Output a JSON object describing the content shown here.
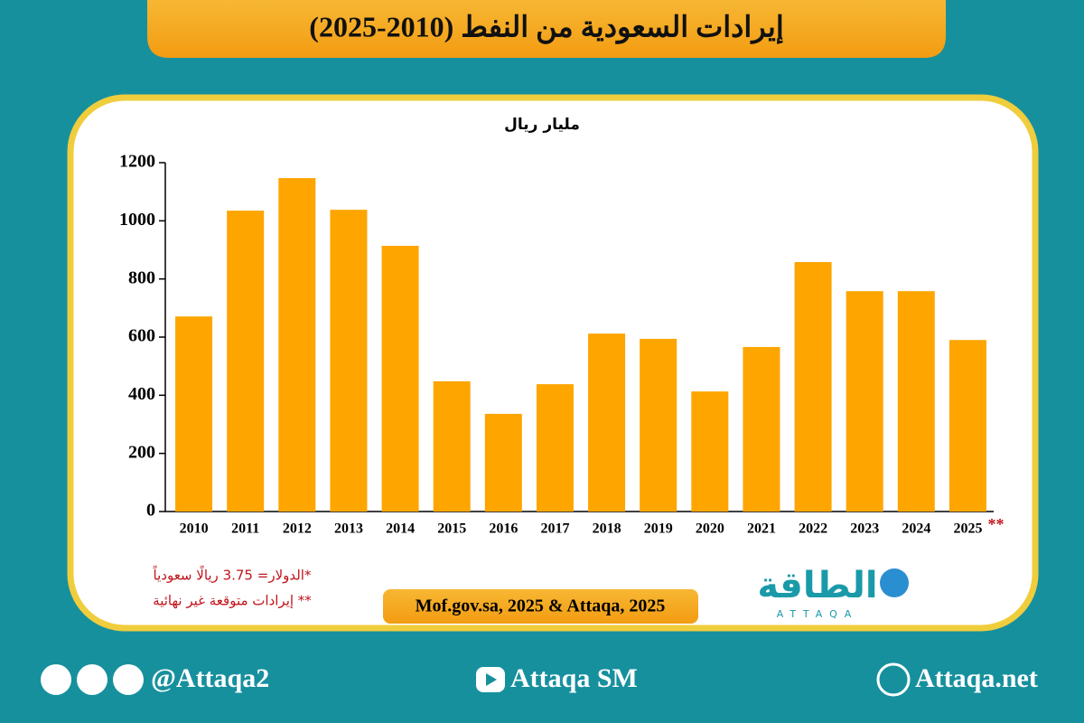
{
  "chart_data": {
    "type": "bar",
    "title": "إيرادات السعودية من النفط (2010-2025)",
    "unit_label": "مليار ريال",
    "categories": [
      "2010",
      "2011",
      "2012",
      "2013",
      "2014",
      "2015",
      "2016",
      "2017",
      "2018",
      "2019",
      "2020",
      "2021",
      "2022",
      "2023",
      "2024",
      "2025"
    ],
    "category_marker": "**",
    "values": [
      671,
      1035,
      1147,
      1038,
      914,
      448,
      336,
      438,
      612,
      594,
      413,
      566,
      858,
      758,
      758,
      590
    ],
    "color": "#fea500",
    "ylim": [
      0,
      1200
    ],
    "yticks": [
      0,
      200,
      400,
      600,
      800,
      1000,
      1200
    ],
    "notes": [
      "*الدولار= 3.75 ريالًا سعودياً",
      "** إيرادات متوقعة غير نهائية"
    ],
    "source": "Mof.gov.sa, 2025 & Attaqa, 2025"
  },
  "brand": {
    "logo": "الطاقة",
    "logo_latin": "ATTAQA"
  },
  "footer": {
    "social": "@Attaqa2",
    "youtube": "Attaqa SM",
    "website": "Attaqa.net"
  }
}
